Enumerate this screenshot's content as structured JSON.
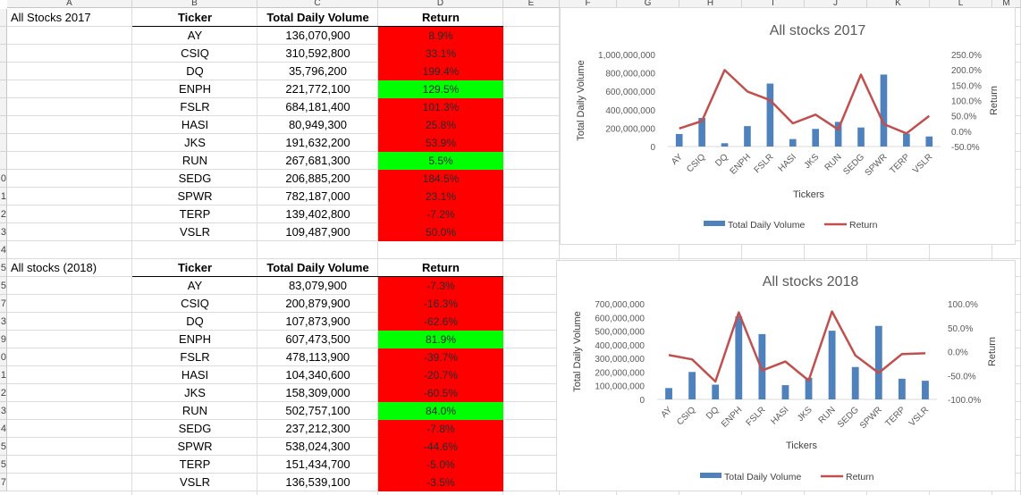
{
  "columns": [
    "A",
    "B",
    "C",
    "D",
    "E",
    "F",
    "G",
    "H",
    "I",
    "J",
    "K",
    "L",
    "M"
  ],
  "row_numbers": [
    "",
    "",
    "",
    "",
    "",
    "",
    "",
    "",
    "",
    "0",
    "1",
    "2",
    "3",
    "4",
    "5",
    "5",
    "7",
    "3",
    "9",
    "0",
    "1",
    "2",
    "3",
    "4",
    "5",
    "5",
    "7"
  ],
  "colors": {
    "positive": "#00ff00",
    "negative": "#ff0000",
    "bar": "#4f81bd",
    "line": "#c0504d"
  },
  "table2017": {
    "title": "All Stocks 2017",
    "headers": {
      "ticker": "Ticker",
      "volume": "Total Daily Volume",
      "return": "Return"
    },
    "rows": [
      {
        "ticker": "AY",
        "volume": "136,070,900",
        "return": "8.9%",
        "positive": false
      },
      {
        "ticker": "CSIQ",
        "volume": "310,592,800",
        "return": "33.1%",
        "positive": false
      },
      {
        "ticker": "DQ",
        "volume": "35,796,200",
        "return": "199.4%",
        "positive": false
      },
      {
        "ticker": "ENPH",
        "volume": "221,772,100",
        "return": "129.5%",
        "positive": true
      },
      {
        "ticker": "FSLR",
        "volume": "684,181,400",
        "return": "101.3%",
        "positive": false
      },
      {
        "ticker": "HASI",
        "volume": "80,949,300",
        "return": "25.8%",
        "positive": false
      },
      {
        "ticker": "JKS",
        "volume": "191,632,200",
        "return": "53.9%",
        "positive": false
      },
      {
        "ticker": "RUN",
        "volume": "267,681,300",
        "return": "5.5%",
        "positive": true
      },
      {
        "ticker": "SEDG",
        "volume": "206,885,200",
        "return": "184.5%",
        "positive": false
      },
      {
        "ticker": "SPWR",
        "volume": "782,187,000",
        "return": "23.1%",
        "positive": false
      },
      {
        "ticker": "TERP",
        "volume": "139,402,800",
        "return": "-7.2%",
        "positive": false
      },
      {
        "ticker": "VSLR",
        "volume": "109,487,900",
        "return": "50.0%",
        "positive": false
      }
    ]
  },
  "table2018": {
    "title": "All stocks (2018)",
    "headers": {
      "ticker": "Ticker",
      "volume": "Total Daily Volume",
      "return": "Return"
    },
    "rows": [
      {
        "ticker": "AY",
        "volume": "83,079,900",
        "return": "-7.3%",
        "positive": false
      },
      {
        "ticker": "CSIQ",
        "volume": "200,879,900",
        "return": "-16.3%",
        "positive": false
      },
      {
        "ticker": "DQ",
        "volume": "107,873,900",
        "return": "-62.6%",
        "positive": false
      },
      {
        "ticker": "ENPH",
        "volume": "607,473,500",
        "return": "81.9%",
        "positive": true
      },
      {
        "ticker": "FSLR",
        "volume": "478,113,900",
        "return": "-39.7%",
        "positive": false
      },
      {
        "ticker": "HASI",
        "volume": "104,340,600",
        "return": "-20.7%",
        "positive": false
      },
      {
        "ticker": "JKS",
        "volume": "158,309,000",
        "return": "-60.5%",
        "positive": false
      },
      {
        "ticker": "RUN",
        "volume": "502,757,100",
        "return": "84.0%",
        "positive": true
      },
      {
        "ticker": "SEDG",
        "volume": "237,212,300",
        "return": "-7.8%",
        "positive": false
      },
      {
        "ticker": "SPWR",
        "volume": "538,024,300",
        "return": "-44.6%",
        "positive": false
      },
      {
        "ticker": "TERP",
        "volume": "151,434,700",
        "return": "-5.0%",
        "positive": false
      },
      {
        "ticker": "VSLR",
        "volume": "136,539,100",
        "return": "-3.5%",
        "positive": false
      }
    ]
  },
  "chart_data": [
    {
      "type": "bar",
      "title": "All stocks 2017",
      "xlabel": "Tickers",
      "ylabel": "Total Daily Volume",
      "y2label": "Return",
      "categories": [
        "AY",
        "CSIQ",
        "DQ",
        "ENPH",
        "FSLR",
        "HASI",
        "JKS",
        "RUN",
        "SEDG",
        "SPWR",
        "TERP",
        "VSLR"
      ],
      "series": [
        {
          "name": "Total Daily Volume",
          "type": "bar",
          "axis": "left",
          "values": [
            136070900,
            310592800,
            35796200,
            221772100,
            684181400,
            80949300,
            191632200,
            267681300,
            206885200,
            782187000,
            139402800,
            109487900
          ]
        },
        {
          "name": "Return",
          "type": "line",
          "axis": "right",
          "values": [
            0.089,
            0.331,
            1.994,
            1.295,
            1.013,
            0.258,
            0.539,
            0.055,
            1.845,
            0.231,
            -0.072,
            0.5
          ]
        }
      ],
      "ylim": [
        0,
        1000000000
      ],
      "y_ticks": [
        0,
        200000000,
        400000000,
        600000000,
        800000000,
        1000000000
      ],
      "y_tick_labels": [
        "0",
        "200,000,000",
        "400,000,000",
        "600,000,000",
        "800,000,000",
        "1,000,000,000"
      ],
      "y2lim": [
        -0.5,
        2.5
      ],
      "y2_ticks": [
        -0.5,
        0,
        0.5,
        1,
        1.5,
        2,
        2.5
      ],
      "y2_tick_labels": [
        "-50.0%",
        "0.0%",
        "50.0%",
        "100.0%",
        "150.0%",
        "200.0%",
        "250.0%"
      ],
      "legend": "bottom"
    },
    {
      "type": "bar",
      "title": "All stocks 2018",
      "xlabel": "Tickers",
      "ylabel": "Total Daily Volume",
      "y2label": "Return",
      "categories": [
        "AY",
        "CSIQ",
        "DQ",
        "ENPH",
        "FSLR",
        "HASI",
        "JKS",
        "RUN",
        "SEDG",
        "SPWR",
        "TERP",
        "VSLR"
      ],
      "series": [
        {
          "name": "Total Daily Volume",
          "type": "bar",
          "axis": "left",
          "values": [
            83079900,
            200879900,
            107873900,
            607473500,
            478113900,
            104340600,
            158309000,
            502757100,
            237212300,
            538024300,
            151434700,
            136539100
          ]
        },
        {
          "name": "Return",
          "type": "line",
          "axis": "right",
          "values": [
            -0.073,
            -0.163,
            -0.626,
            0.819,
            -0.397,
            -0.207,
            -0.605,
            0.84,
            -0.078,
            -0.446,
            -0.05,
            -0.035
          ]
        }
      ],
      "ylim": [
        0,
        700000000
      ],
      "y_ticks": [
        0,
        100000000,
        200000000,
        300000000,
        400000000,
        500000000,
        600000000,
        700000000
      ],
      "y_tick_labels": [
        "0",
        "100,000,000",
        "200,000,000",
        "300,000,000",
        "400,000,000",
        "500,000,000",
        "600,000,000",
        "700,000,000"
      ],
      "y2lim": [
        -1.0,
        1.0
      ],
      "y2_ticks": [
        -1.0,
        -0.5,
        0,
        0.5,
        1.0
      ],
      "y2_tick_labels": [
        "-100.0%",
        "-50.0%",
        "0.0%",
        "50.0%",
        "100.0%"
      ],
      "legend": "bottom"
    }
  ]
}
